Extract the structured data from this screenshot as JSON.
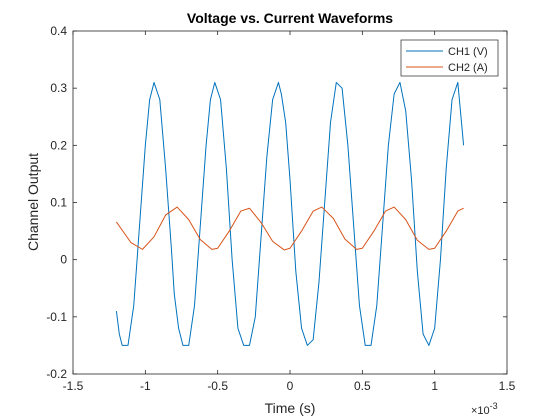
{
  "chart_data": {
    "type": "line",
    "title": "Voltage vs. Current Waveforms",
    "xlabel": "Time (s)",
    "ylabel": "Channel Output",
    "x_exponent_label": "×10",
    "x_exponent_power": "-3",
    "xlim": [
      -1.5,
      1.5
    ],
    "ylim": [
      -0.2,
      0.4
    ],
    "xticks": [
      -1.5,
      -1,
      -0.5,
      0,
      0.5,
      1,
      1.5
    ],
    "yticks": [
      -0.2,
      -0.1,
      0,
      0.1,
      0.2,
      0.3,
      0.4
    ],
    "xtick_labels": [
      "-1.5",
      "-1",
      "-0.5",
      "0",
      "0.5",
      "1",
      "1.5"
    ],
    "ytick_labels": [
      "-0.2",
      "-0.1",
      "0",
      "0.1",
      "0.2",
      "0.3",
      "0.4"
    ],
    "grid": false,
    "legend_position": "top-right",
    "series": [
      {
        "name": "CH1 (V)",
        "color": "#0072BD",
        "x": [
          -1.2,
          -1.18,
          -1.16,
          -1.12,
          -1.08,
          -1.04,
          -1.0,
          -0.97,
          -0.94,
          -0.9,
          -0.86,
          -0.82,
          -0.8,
          -0.77,
          -0.74,
          -0.7,
          -0.66,
          -0.62,
          -0.58,
          -0.55,
          -0.52,
          -0.48,
          -0.44,
          -0.4,
          -0.36,
          -0.32,
          -0.28,
          -0.24,
          -0.2,
          -0.16,
          -0.12,
          -0.08,
          -0.06,
          -0.03,
          0.0,
          0.04,
          0.08,
          0.12,
          0.16,
          0.2,
          0.24,
          0.28,
          0.32,
          0.36,
          0.4,
          0.44,
          0.48,
          0.52,
          0.56,
          0.6,
          0.64,
          0.68,
          0.72,
          0.76,
          0.8,
          0.84,
          0.88,
          0.92,
          0.96,
          1.0,
          1.04,
          1.08,
          1.12,
          1.16,
          1.2
        ],
        "y": [
          -0.09,
          -0.13,
          -0.15,
          -0.15,
          -0.08,
          0.06,
          0.2,
          0.28,
          0.31,
          0.28,
          0.16,
          0.02,
          -0.06,
          -0.12,
          -0.15,
          -0.15,
          -0.08,
          0.06,
          0.2,
          0.28,
          0.31,
          0.28,
          0.16,
          0.0,
          -0.12,
          -0.15,
          -0.15,
          -0.1,
          0.04,
          0.18,
          0.28,
          0.31,
          0.29,
          0.24,
          0.14,
          -0.02,
          -0.12,
          -0.15,
          -0.14,
          -0.04,
          0.1,
          0.24,
          0.31,
          0.3,
          0.2,
          0.06,
          -0.08,
          -0.15,
          -0.15,
          -0.08,
          0.06,
          0.2,
          0.29,
          0.31,
          0.26,
          0.14,
          -0.02,
          -0.13,
          -0.15,
          -0.12,
          0.0,
          0.16,
          0.28,
          0.31,
          0.2
        ]
      },
      {
        "name": "CH2 (A)",
        "color": "#D95319",
        "x": [
          -1.2,
          -1.1,
          -1.02,
          -0.94,
          -0.86,
          -0.78,
          -0.7,
          -0.62,
          -0.54,
          -0.5,
          -0.42,
          -0.34,
          -0.28,
          -0.2,
          -0.12,
          -0.04,
          0.0,
          0.08,
          0.16,
          0.22,
          0.3,
          0.38,
          0.46,
          0.5,
          0.58,
          0.66,
          0.72,
          0.8,
          0.88,
          0.96,
          1.0,
          1.08,
          1.16,
          1.2
        ],
        "y": [
          0.066,
          0.03,
          0.018,
          0.04,
          0.078,
          0.092,
          0.07,
          0.035,
          0.018,
          0.02,
          0.05,
          0.085,
          0.09,
          0.065,
          0.032,
          0.017,
          0.02,
          0.05,
          0.085,
          0.092,
          0.072,
          0.036,
          0.018,
          0.02,
          0.05,
          0.085,
          0.092,
          0.07,
          0.034,
          0.018,
          0.02,
          0.05,
          0.085,
          0.09
        ]
      }
    ]
  }
}
